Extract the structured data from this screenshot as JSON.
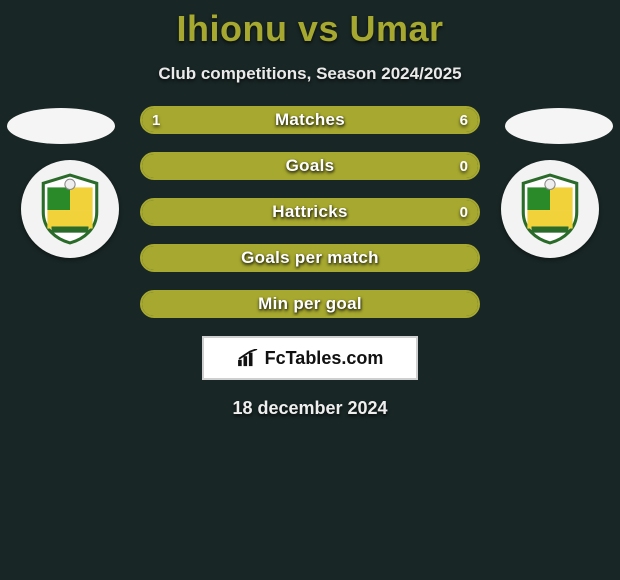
{
  "colors": {
    "background": "#182625",
    "title": "#a6a82f",
    "text": "#ffffff",
    "bar_border": "#a6a82f",
    "bar_fill": "#a6a82f",
    "brand_border": "#cfcfcf",
    "brand_bg": "#ffffff"
  },
  "title": {
    "text": "Ihionu vs Umar",
    "fontsize": 36,
    "fontweight": 800
  },
  "subtitle": {
    "text": "Club competitions, Season 2024/2025",
    "fontsize": 17
  },
  "stats": [
    {
      "label": "Matches",
      "left_value": "1",
      "right_value": "6",
      "left_pct": 14.3,
      "right_pct": 85.7,
      "show_values": true
    },
    {
      "label": "Goals",
      "left_value": "",
      "right_value": "0",
      "left_pct": 100,
      "right_pct": 0,
      "show_values": true
    },
    {
      "label": "Hattricks",
      "left_value": "",
      "right_value": "0",
      "left_pct": 100,
      "right_pct": 0,
      "show_values": true
    },
    {
      "label": "Goals per match",
      "left_value": "",
      "right_value": "",
      "left_pct": 100,
      "right_pct": 0,
      "show_values": false
    },
    {
      "label": "Min per goal",
      "left_value": "",
      "right_value": "",
      "left_pct": 100,
      "right_pct": 0,
      "show_values": false
    }
  ],
  "brand": {
    "text": "FcTables.com"
  },
  "date": {
    "text": "18 december 2024",
    "fontsize": 18
  }
}
